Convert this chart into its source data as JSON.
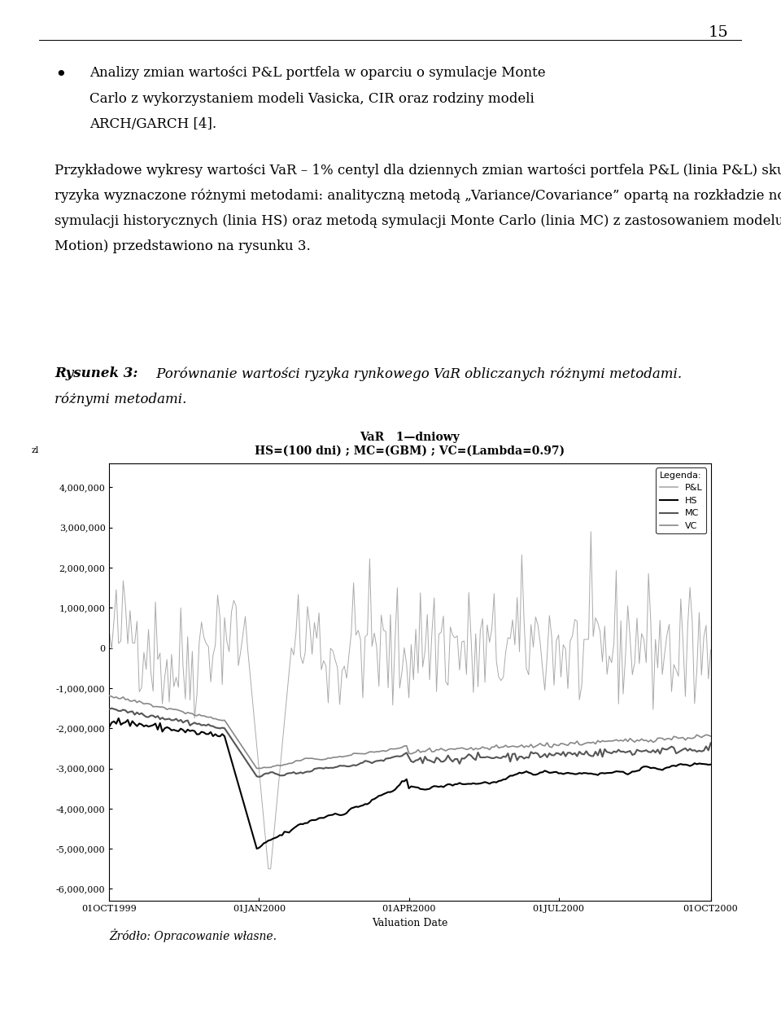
{
  "title": "VaR   1—dniowy",
  "subtitle": "HS=(100 dni) ; MC=(GBM) ; VC=(Lambda=0.97)",
  "xlabel": "Valuation Date",
  "ylabel": "zl",
  "yticks": [
    4000000,
    3000000,
    2000000,
    1000000,
    0,
    -1000000,
    -2000000,
    -3000000,
    -4000000,
    -5000000,
    -6000000
  ],
  "ytick_labels": [
    "4,000,000",
    "3,000,000",
    "2,000,000",
    "1,000,000",
    "0",
    "-1,000,000",
    "-2,000,000",
    "-3,000,000",
    "-4,000,000",
    "-5,000,000",
    "-6,000,000"
  ],
  "xtick_labels": [
    "01OCT1999",
    "01JAN2000",
    "01APR2000",
    "01JUL2000",
    "01OCT2000"
  ],
  "legend_title": "Legenda:",
  "legend_entries": [
    "P&L",
    "HS",
    "MC",
    "VC"
  ],
  "pl_color": "#aaaaaa",
  "hs_color": "#000000",
  "mc_color": "#555555",
  "vc_color": "#888888",
  "figure_caption_bold": "Rysunek 3: ",
  "figure_caption_italic": " Porównanie wartości ryzyka rynkowego VaR obliczanych różnymi metodami.",
  "source_text": "Żródło: Opracowanie własne.",
  "page_number": "15",
  "bullet_text_line1": "Analizy zmian wartości P&L portfela w oparciu o symulacje Monte",
  "bullet_text_line2": "Carlo z wykorzystaniem modeli Vasicka, CIR oraz rodziny modeli",
  "bullet_text_line3": "ARCH/GARCH [4].",
  "para_line1": "Przykładowe wykresy wartości VaR – 1% centyl dla dziennych zmian wartości portfela P&L (linia P&L) skutek zmian rynkowych czynników",
  "para_line2": "ryzyka wyznaczone różnymi metodami: analityczną metodą „Variance/Covariance” opartą na rozkładzie normalnym (linia VC), metoda",
  "para_line3": "symulacji historycznych (linia HS) oraz metodą symulacji Monte Carlo (linia MC) z zastosowaniem modelu GBM (ang. Geometric Brownian",
  "para_line4": "Motion) przedstawiono na rysunku 3."
}
